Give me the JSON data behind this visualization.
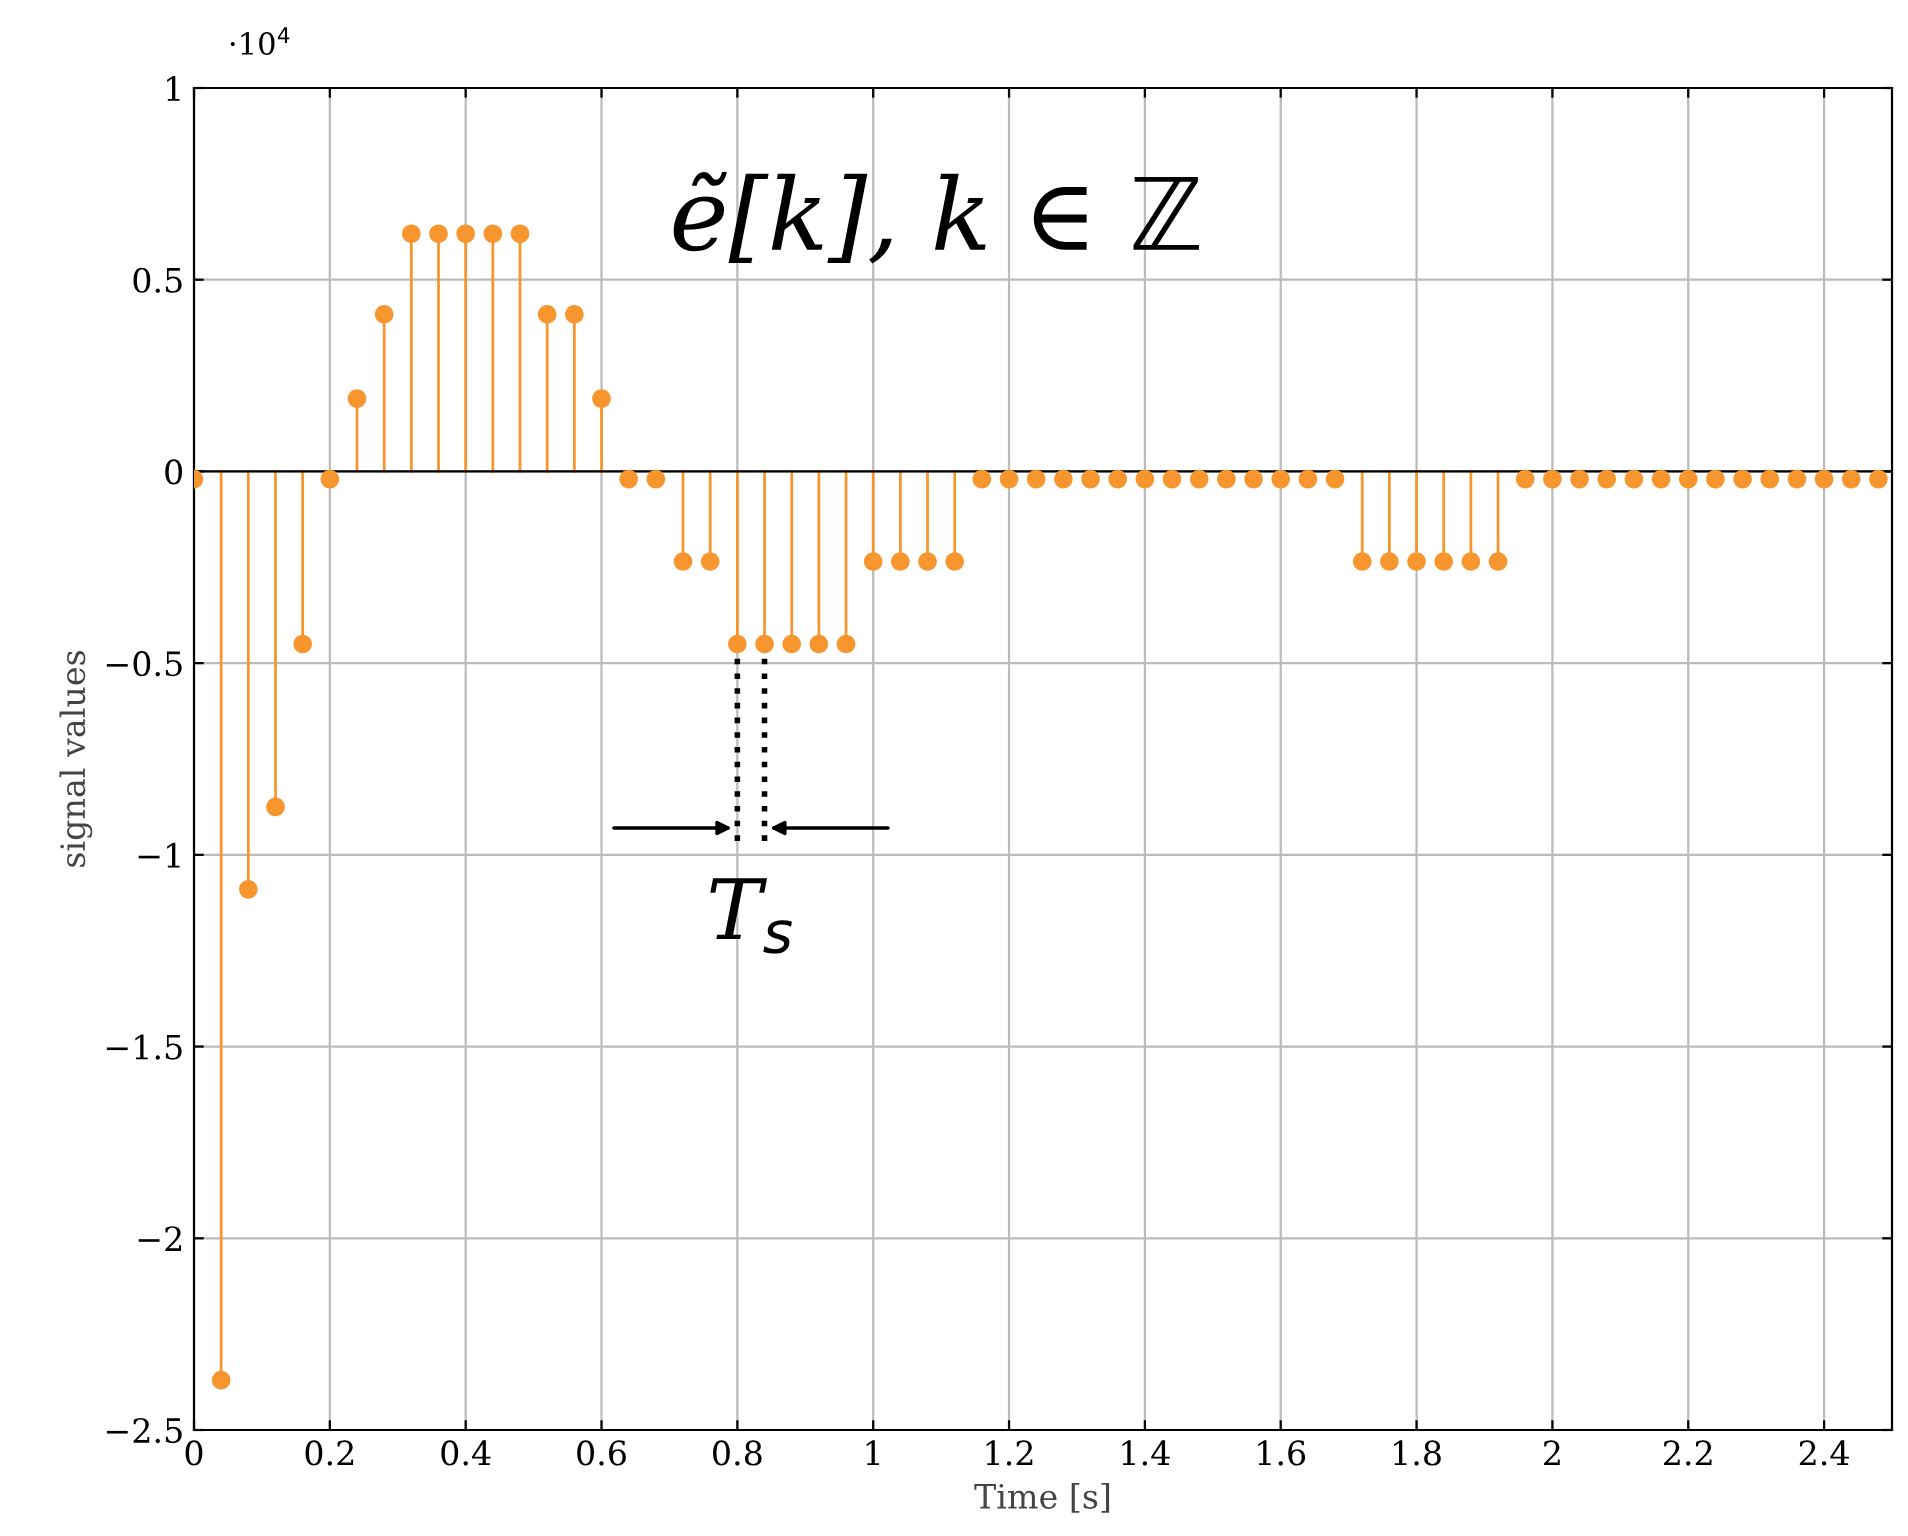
{
  "chart_data": {
    "type": "lollipop",
    "xlabel": "Time [s]",
    "ylabel": "signal values",
    "x": [
      0,
      0.04,
      0.08,
      0.12,
      0.16,
      0.2,
      0.24,
      0.28,
      0.32,
      0.36,
      0.4,
      0.44,
      0.48,
      0.52,
      0.56,
      0.6,
      0.64,
      0.68,
      0.72,
      0.76,
      0.8,
      0.84,
      0.88,
      0.92,
      0.96,
      1.0,
      1.04,
      1.08,
      1.12,
      1.16,
      1.2,
      1.24,
      1.28,
      1.32,
      1.36,
      1.4,
      1.44,
      1.48,
      1.52,
      1.56,
      1.6,
      1.64,
      1.68,
      1.72,
      1.76,
      1.8,
      1.84,
      1.88,
      1.92,
      1.96,
      2.0,
      2.04,
      2.08,
      2.12,
      2.16,
      2.2,
      2.24,
      2.28,
      2.32,
      2.36,
      2.4,
      2.44,
      2.48
    ],
    "series": [
      {
        "color": "#f7962e",
        "values": [
          -0.02,
          -2.37,
          -1.09,
          -0.875,
          -0.45,
          -0.02,
          0.19,
          0.41,
          0.62,
          0.62,
          0.62,
          0.62,
          0.62,
          0.41,
          0.41,
          0.19,
          -0.02,
          -0.02,
          -0.235,
          -0.235,
          -0.45,
          -0.45,
          -0.45,
          -0.45,
          -0.45,
          -0.235,
          -0.235,
          -0.235,
          -0.235,
          -0.02,
          -0.02,
          -0.02,
          -0.02,
          -0.02,
          -0.02,
          -0.02,
          -0.02,
          -0.02,
          -0.02,
          -0.02,
          -0.02,
          -0.02,
          -0.02,
          -0.235,
          -0.235,
          -0.235,
          -0.235,
          -0.235,
          -0.235,
          -0.02,
          -0.02,
          -0.02,
          -0.02,
          -0.02,
          -0.02,
          -0.02,
          -0.02,
          -0.02,
          -0.02,
          -0.02,
          -0.02,
          -0.02,
          -0.02
        ]
      }
    ],
    "xlim": [
      0,
      2.5
    ],
    "xticks": [
      0,
      0.2,
      0.4,
      0.6,
      0.8,
      1,
      1.2,
      1.4,
      1.6,
      1.8,
      2,
      2.2,
      2.4
    ],
    "ylim": [
      -2.5,
      1
    ],
    "yticks": [
      {
        "value": -2.5,
        "label": "−2.5"
      },
      {
        "value": -2,
        "label": "−2"
      },
      {
        "value": -1.5,
        "label": "−1.5"
      },
      {
        "value": -1,
        "label": "−1"
      },
      {
        "value": -0.5,
        "label": "−0.5"
      },
      0,
      0.5,
      1
    ],
    "grid": true,
    "marker": "circle",
    "annotations": [
      "·10$^{4}$",
      "ẽ[k], k ∈ ℤ",
      {
        "text": "T$_{s}$",
        "x": 0.8,
        "y": -0.45
      }
    ]
  }
}
